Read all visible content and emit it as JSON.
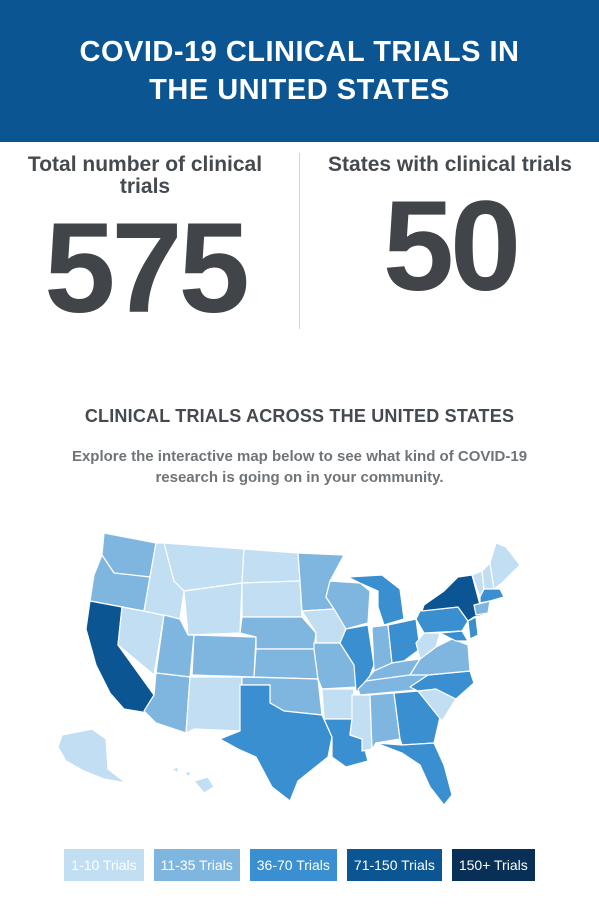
{
  "header": {
    "title": "COVID-19 CLINICAL TRIALS IN THE UNITED STATES"
  },
  "stats": [
    {
      "label": "Total number of clinical trials",
      "value": "575"
    },
    {
      "label": "States with clinical trials",
      "value": "50"
    }
  ],
  "section": {
    "title": "CLINICAL TRIALS ACROSS THE UNITED STATES",
    "subtitle": "Explore the interactive map below to see what kind of COVID-19 research is going on in your community."
  },
  "legend": [
    {
      "label": "1-10 Trials",
      "color": "#c2def3"
    },
    {
      "label": "11-35 Trials",
      "color": "#7fb6e0"
    },
    {
      "label": "36-70 Trials",
      "color": "#3a8fd0"
    },
    {
      "label": "71-150 Trials",
      "color": "#0b5592"
    },
    {
      "label": "150+ Trials",
      "color": "#082f55"
    }
  ],
  "map": {
    "states": [
      {
        "name": "WA",
        "tier": 1
      },
      {
        "name": "OR",
        "tier": 1
      },
      {
        "name": "CA",
        "tier": 3
      },
      {
        "name": "NV",
        "tier": 0
      },
      {
        "name": "ID",
        "tier": 0
      },
      {
        "name": "MT",
        "tier": 0
      },
      {
        "name": "WY",
        "tier": 0
      },
      {
        "name": "UT",
        "tier": 1
      },
      {
        "name": "AZ",
        "tier": 1
      },
      {
        "name": "CO",
        "tier": 1
      },
      {
        "name": "NM",
        "tier": 0
      },
      {
        "name": "ND",
        "tier": 0
      },
      {
        "name": "SD",
        "tier": 0
      },
      {
        "name": "NE",
        "tier": 1
      },
      {
        "name": "KS",
        "tier": 1
      },
      {
        "name": "OK",
        "tier": 1
      },
      {
        "name": "TX",
        "tier": 2
      },
      {
        "name": "MN",
        "tier": 1
      },
      {
        "name": "IA",
        "tier": 0
      },
      {
        "name": "MO",
        "tier": 1
      },
      {
        "name": "AR",
        "tier": 0
      },
      {
        "name": "LA",
        "tier": 2
      },
      {
        "name": "WI",
        "tier": 1
      },
      {
        "name": "IL",
        "tier": 2
      },
      {
        "name": "MI",
        "tier": 2
      },
      {
        "name": "IN",
        "tier": 1
      },
      {
        "name": "OH",
        "tier": 2
      },
      {
        "name": "KY",
        "tier": 1
      },
      {
        "name": "TN",
        "tier": 1
      },
      {
        "name": "MS",
        "tier": 0
      },
      {
        "name": "AL",
        "tier": 1
      },
      {
        "name": "GA",
        "tier": 2
      },
      {
        "name": "FL",
        "tier": 2
      },
      {
        "name": "SC",
        "tier": 0
      },
      {
        "name": "NC",
        "tier": 2
      },
      {
        "name": "VA",
        "tier": 1
      },
      {
        "name": "WV",
        "tier": 0
      },
      {
        "name": "PA",
        "tier": 2
      },
      {
        "name": "NY",
        "tier": 3
      },
      {
        "name": "VT",
        "tier": 0
      },
      {
        "name": "NH",
        "tier": 0
      },
      {
        "name": "ME",
        "tier": 0
      },
      {
        "name": "MA",
        "tier": 2
      },
      {
        "name": "CT",
        "tier": 1
      },
      {
        "name": "NJ",
        "tier": 2
      },
      {
        "name": "MD",
        "tier": 2
      },
      {
        "name": "AK",
        "tier": 0
      },
      {
        "name": "HI",
        "tier": 0
      }
    ]
  }
}
